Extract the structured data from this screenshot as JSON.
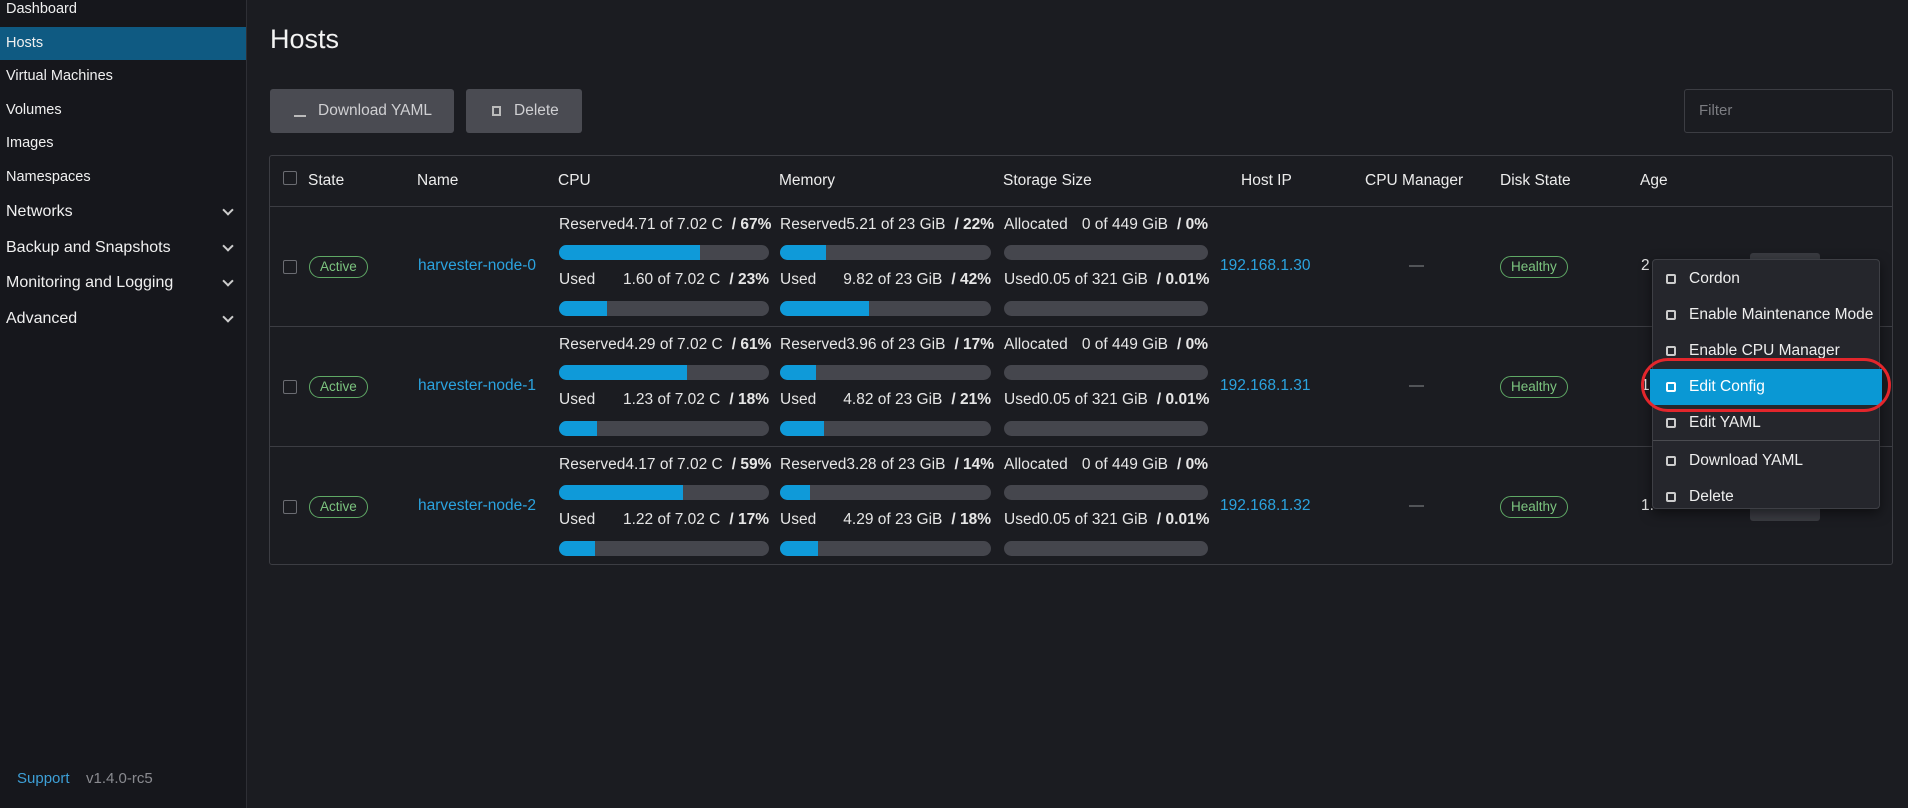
{
  "sidebar": {
    "items": [
      "Dashboard",
      "Hosts",
      "Virtual Machines",
      "Volumes",
      "Images",
      "Namespaces"
    ],
    "active": 1,
    "groups": [
      "Networks",
      "Backup and Snapshots",
      "Monitoring and Logging",
      "Advanced"
    ],
    "support": "Support",
    "version": "v1.4.0-rc5"
  },
  "header": {
    "title": "Hosts"
  },
  "toolbar": {
    "buttons": [
      "Download YAML",
      "Delete"
    ],
    "filter_placeholder": "Filter"
  },
  "table": {
    "columns": [
      "State",
      "Name",
      "CPU",
      "Memory",
      "Storage Size",
      "Host IP",
      "CPU Manager",
      "Disk State",
      "Age"
    ],
    "rows": [
      {
        "state": "Active",
        "name": "harvester-node-0",
        "cpu": {
          "top": {
            "label": "Reserved",
            "amount": "4.71 of 7.02 C",
            "pct": {
              "value": 67,
              "label": "/ 67%"
            }
          },
          "bottom": {
            "label": "Used",
            "amount": "1.60 of 7.02 C",
            "pct": {
              "value": 23,
              "label": "/ 23%"
            }
          }
        },
        "memory": {
          "top": {
            "label": "Reserved",
            "amount": "5.21 of 23 GiB",
            "pct": {
              "value": 22,
              "label": "/ 22%"
            }
          },
          "bottom": {
            "label": "Used",
            "amount": "9.82 of 23 GiB",
            "pct": {
              "value": 42,
              "label": "/ 42%"
            }
          }
        },
        "storage": {
          "top": {
            "label": "Allocated",
            "amount": "0 of 449 GiB",
            "pct": {
              "value": 0,
              "label": "/ 0%"
            }
          },
          "bottom": {
            "label": "Used",
            "amount": "0.05 of 321 GiB",
            "pct": {
              "value": 0.01,
              "label": "/ 0.01%"
            }
          }
        },
        "host_ip": "192.168.1.30",
        "cpu_manager": "—",
        "disk_state": "Healthy",
        "age": "2"
      },
      {
        "state": "Active",
        "name": "harvester-node-1",
        "cpu": {
          "top": {
            "label": "Reserved",
            "amount": "4.29 of 7.02 C",
            "pct": {
              "value": 61,
              "label": "/ 61%"
            }
          },
          "bottom": {
            "label": "Used",
            "amount": "1.23 of 7.02 C",
            "pct": {
              "value": 18,
              "label": "/ 18%"
            }
          }
        },
        "memory": {
          "top": {
            "label": "Reserved",
            "amount": "3.96 of 23 GiB",
            "pct": {
              "value": 17,
              "label": "/ 17%"
            }
          },
          "bottom": {
            "label": "Used",
            "amount": "4.82 of 23 GiB",
            "pct": {
              "value": 21,
              "label": "/ 21%"
            }
          }
        },
        "storage": {
          "top": {
            "label": "Allocated",
            "amount": "0 of 449 GiB",
            "pct": {
              "value": 0,
              "label": "/ 0%"
            }
          },
          "bottom": {
            "label": "Used",
            "amount": "0.05 of 321 GiB",
            "pct": {
              "value": 0.01,
              "label": "/ 0.01%"
            }
          }
        },
        "host_ip": "192.168.1.31",
        "cpu_manager": "—",
        "disk_state": "Healthy",
        "age": "1."
      },
      {
        "state": "Active",
        "name": "harvester-node-2",
        "cpu": {
          "top": {
            "label": "Reserved",
            "amount": "4.17 of 7.02 C",
            "pct": {
              "value": 59,
              "label": "/ 59%"
            }
          },
          "bottom": {
            "label": "Used",
            "amount": "1.22 of 7.02 C",
            "pct": {
              "value": 17,
              "label": "/ 17%"
            }
          }
        },
        "memory": {
          "top": {
            "label": "Reserved",
            "amount": "3.28 of 23 GiB",
            "pct": {
              "value": 14,
              "label": "/ 14%"
            }
          },
          "bottom": {
            "label": "Used",
            "amount": "4.29 of 23 GiB",
            "pct": {
              "value": 18,
              "label": "/ 18%"
            }
          }
        },
        "storage": {
          "top": {
            "label": "Allocated",
            "amount": "0 of 449 GiB",
            "pct": {
              "value": 0,
              "label": "/ 0%"
            }
          },
          "bottom": {
            "label": "Used",
            "amount": "0.05 of 321 GiB",
            "pct": {
              "value": 0.01,
              "label": "/ 0.01%"
            }
          }
        },
        "host_ip": "192.168.1.32",
        "cpu_manager": "—",
        "disk_state": "Healthy",
        "age": "1."
      }
    ]
  },
  "menu": {
    "items": [
      "Cordon",
      "Enable Maintenance Mode",
      "Enable CPU Manager",
      "Edit Config",
      "Edit YAML",
      "Download YAML",
      "Delete"
    ],
    "selected": 3
  }
}
